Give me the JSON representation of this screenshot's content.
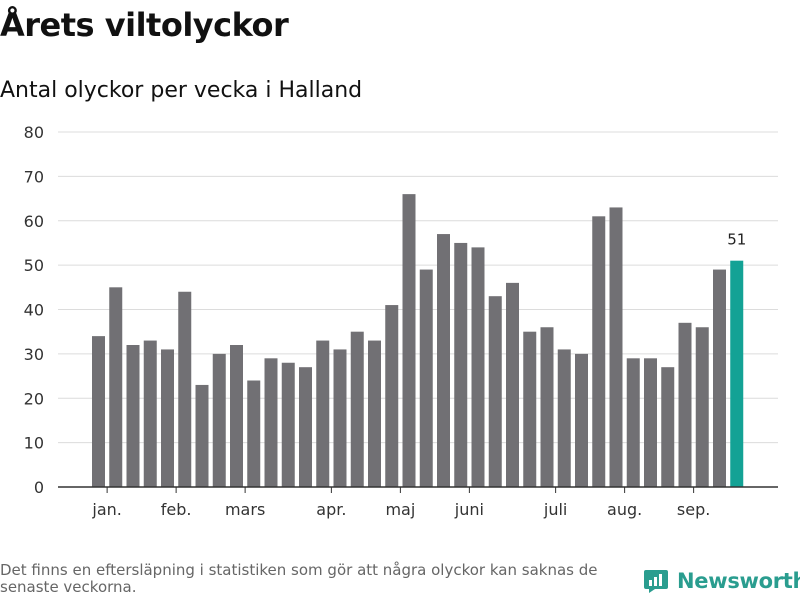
{
  "header": {
    "title": "Årets viltolyckor",
    "subtitle": "Antal olyckor per vecka i Halland"
  },
  "footer": {
    "note": "Det finns en eftersläpning i statistiken som gör att några olyckor kan saknas de senaste veckorna.",
    "brand": "Newsworthy"
  },
  "colors": {
    "bar": "#717074",
    "highlight": "#13a295",
    "grid": "#dcdcdc",
    "axis": "#333333",
    "brand": "#2a9d8f"
  },
  "chart_data": {
    "type": "bar",
    "title": "Antal olyckor per vecka i Halland",
    "xlabel": "",
    "ylabel": "",
    "ylim": [
      0,
      80
    ],
    "yticks": [
      0,
      10,
      20,
      30,
      40,
      50,
      60,
      70,
      80
    ],
    "values": [
      34,
      45,
      32,
      33,
      31,
      44,
      23,
      30,
      32,
      24,
      29,
      28,
      27,
      33,
      31,
      35,
      33,
      41,
      66,
      49,
      57,
      55,
      54,
      43,
      46,
      35,
      36,
      31,
      30,
      61,
      63,
      29,
      29,
      27,
      37,
      36,
      49,
      51
    ],
    "highlight_index": 37,
    "highlight_label": "51",
    "month_labels": [
      {
        "label": "jan.",
        "at_bar": 0.5
      },
      {
        "label": "feb.",
        "at_bar": 4.5
      },
      {
        "label": "mars",
        "at_bar": 8.5
      },
      {
        "label": "apr.",
        "at_bar": 13.5
      },
      {
        "label": "maj",
        "at_bar": 17.5
      },
      {
        "label": "juni",
        "at_bar": 21.5
      },
      {
        "label": "juli",
        "at_bar": 26.5
      },
      {
        "label": "aug.",
        "at_bar": 30.5
      },
      {
        "label": "sep.",
        "at_bar": 34.5
      }
    ],
    "grid": true
  }
}
